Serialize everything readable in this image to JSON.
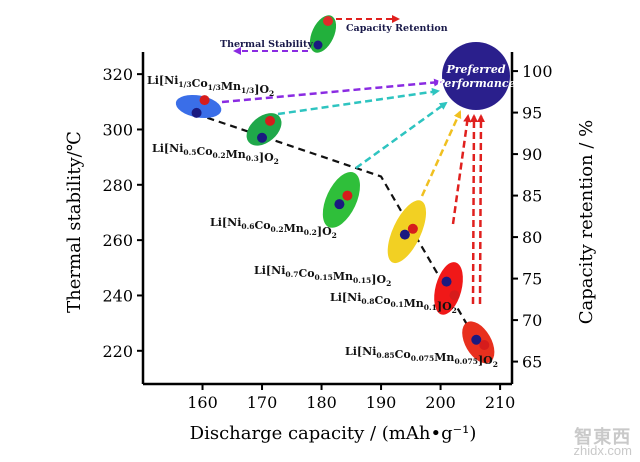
{
  "chart_data": {
    "type": "scatter",
    "xlabel": "Discharge capacity / (mAh•g⁻¹)",
    "ylabel_left": "Thermal stability/℃",
    "ylabel_right": "Capacity retention / %",
    "xlim": [
      150,
      212
    ],
    "ylim_left": [
      208,
      328
    ],
    "ylim_right": [
      62.3,
      102.3
    ],
    "x_ticks": [
      160,
      170,
      180,
      190,
      200,
      210
    ],
    "y_left_ticks": [
      220,
      240,
      260,
      280,
      300,
      320
    ],
    "y_right_ticks": [
      65,
      70,
      75,
      80,
      85,
      90,
      95,
      100
    ],
    "materials": [
      {
        "label": "Li[Ni1/3Co1/3Mn1/3]O2",
        "capacity": 159,
        "thermal_stability": 306,
        "capacity_retention": 96.5,
        "ellipse_color": "#3a6ee8"
      },
      {
        "label": "Li[Ni0.5Co0.2Mn0.3]O2",
        "capacity": 170,
        "thermal_stability": 297,
        "capacity_retention": 94,
        "ellipse_color": "#1fa84a"
      },
      {
        "label": "Li[Ni0.6Co0.2Mn0.2]O2",
        "capacity": 183,
        "thermal_stability": 273,
        "capacity_retention": 85,
        "ellipse_color": "#2fbf3a"
      },
      {
        "label": "Li[Ni0.7Co0.15Mn0.15]O2",
        "capacity": 194,
        "thermal_stability": 262,
        "capacity_retention": 81,
        "ellipse_color": "#f2d023"
      },
      {
        "label": "Li[Ni0.8Co0.1Mn0.1]O2",
        "capacity": 201,
        "thermal_stability": 245,
        "capacity_retention": 73,
        "ellipse_color": "#f01818"
      },
      {
        "label": "Li[Ni0.85Co0.075Mn0.075]O2",
        "capacity": 206,
        "thermal_stability": 224,
        "capacity_retention": 67,
        "ellipse_color": "#e8301e"
      }
    ],
    "trend_line_thermal_stability": {
      "x": [
        157,
        190,
        207
      ],
      "y": [
        307,
        283,
        220
      ]
    },
    "annotations": {
      "preferred": [
        "Preferred",
        "Performance"
      ],
      "thermal_stability_arrow": "Thermal Stability",
      "capacity_retention_arrow": "Capacity Retention"
    }
  },
  "colors": {
    "preferred_fill": "#2a1f8c",
    "arrow_purple": "#8a2be2",
    "arrow_cyan": "#2ec4c0",
    "arrow_yellow": "#f0c020",
    "arrow_red": "#e0201e",
    "marker_dot": "#1a1a80"
  },
  "watermark": {
    "top": "智東西",
    "bottom": "zhidx.com"
  }
}
